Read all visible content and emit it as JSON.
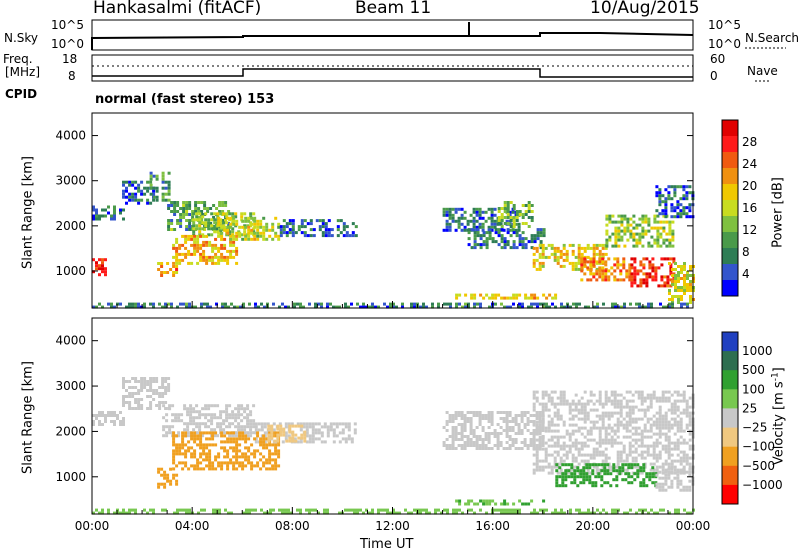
{
  "header": {
    "station": "Hankasalmi (fitACF)",
    "beam": "Beam 11",
    "date": "10/Aug/2015"
  },
  "noise_panel": {
    "left_label": "N.Sky",
    "left_ticks": [
      "10^5",
      "10^0"
    ],
    "right_label": "N.Search",
    "right_ticks": [
      "10^5",
      "10^0"
    ]
  },
  "freq_panel": {
    "left_label_1": "Freq.",
    "left_label_2": "[MHz]",
    "left_ticks": [
      "18",
      "8"
    ],
    "right_label": "Nave",
    "right_ticks": [
      "60",
      "0"
    ]
  },
  "cpid": {
    "label": "CPID",
    "value": "normal (fast stereo) 153"
  },
  "colors": {
    "power": [
      "#0000ff",
      "#3355cc",
      "#2e7d55",
      "#4a9a4a",
      "#7fc040",
      "#c8dc20",
      "#f0c800",
      "#f09010",
      "#f05a10",
      "#ff1a1a",
      "#e00000"
    ],
    "velocity": [
      "#ff0000",
      "#f06010",
      "#f0a020",
      "#f0c880",
      "#c8c8c8",
      "#78c850",
      "#30a030",
      "#2e6e50",
      "#2040c0"
    ],
    "ground_scatter": "#c8c8c8"
  },
  "chart_data": [
    {
      "type": "heatmap",
      "quantity": "Power",
      "ylabel": "Slant Range [km]",
      "xlabel": "",
      "yticks": [
        "4000",
        "3000",
        "2000",
        "1000"
      ],
      "ylim": [
        180,
        4500
      ],
      "xlim": [
        0,
        24
      ],
      "colorbar_label": "Power [dB]",
      "colorbar_ticks": [
        "28",
        "24",
        "20",
        "16",
        "12",
        "8",
        "4"
      ],
      "colorbar_range": [
        0,
        32
      ],
      "regions": [
        {
          "t0": 0.0,
          "t1": 0.5,
          "r0": 900,
          "r1": 1350,
          "v": 27
        },
        {
          "t0": 0.0,
          "t1": 1.2,
          "r0": 2150,
          "r1": 2450,
          "v": 6
        },
        {
          "t0": 1.2,
          "t1": 2.4,
          "r0": 2500,
          "r1": 3000,
          "v": 5
        },
        {
          "t0": 2.3,
          "t1": 3.1,
          "r0": 2600,
          "r1": 3200,
          "v": 10
        },
        {
          "t0": 3.0,
          "t1": 5.5,
          "r0": 1900,
          "r1": 2550,
          "v": 10
        },
        {
          "t0": 4.0,
          "t1": 6.5,
          "r0": 1800,
          "r1": 2300,
          "v": 14
        },
        {
          "t0": 2.6,
          "t1": 3.4,
          "r0": 900,
          "r1": 1200,
          "v": 22
        },
        {
          "t0": 3.2,
          "t1": 5.8,
          "r0": 1200,
          "r1": 1800,
          "v": 20
        },
        {
          "t0": 5.0,
          "t1": 7.5,
          "r0": 1700,
          "r1": 2200,
          "v": 16
        },
        {
          "t0": 7.5,
          "t1": 10.5,
          "r0": 1800,
          "r1": 2150,
          "v": 6
        },
        {
          "t0": 14.0,
          "t1": 17.0,
          "r0": 1900,
          "r1": 2400,
          "v": 6
        },
        {
          "t0": 16.2,
          "t1": 17.6,
          "r0": 2000,
          "r1": 2550,
          "v": 12
        },
        {
          "t0": 15.0,
          "t1": 18.0,
          "r0": 1500,
          "r1": 1950,
          "v": 6
        },
        {
          "t0": 17.6,
          "t1": 20.5,
          "r0": 1050,
          "r1": 1600,
          "v": 18
        },
        {
          "t0": 20.5,
          "t1": 23.2,
          "r0": 1550,
          "r1": 2250,
          "v": 14
        },
        {
          "t0": 22.5,
          "t1": 24.0,
          "r0": 2200,
          "r1": 2900,
          "v": 5
        },
        {
          "t0": 19.5,
          "t1": 21.5,
          "r0": 800,
          "r1": 1300,
          "v": 22
        },
        {
          "t0": 21.5,
          "t1": 23.2,
          "r0": 700,
          "r1": 1300,
          "v": 28
        },
        {
          "t0": 23.0,
          "t1": 24.0,
          "r0": 300,
          "r1": 1200,
          "v": 16
        },
        {
          "t0": 14.5,
          "t1": 18.5,
          "r0": 400,
          "r1": 500,
          "v": 20
        },
        {
          "t0": 0.0,
          "t1": 24.0,
          "r0": 180,
          "r1": 300,
          "v": 7
        }
      ]
    },
    {
      "type": "heatmap",
      "quantity": "Velocity",
      "ylabel": "Slant Range [km]",
      "xlabel": "Time UT",
      "xticks": [
        "00:00",
        "04:00",
        "08:00",
        "12:00",
        "16:00",
        "20:00",
        "00:00"
      ],
      "yticks": [
        "4000",
        "3000",
        "2000",
        "1000"
      ],
      "ylim": [
        180,
        4500
      ],
      "xlim": [
        0,
        24
      ],
      "colorbar_label": "Velocity [m s",
      "colorbar_unit_exp": "-1",
      "colorbar_unit_close": "]",
      "colorbar_ticks": [
        "1000",
        "500",
        "100",
        "25",
        "−25",
        "−100",
        "−500",
        "−1000"
      ],
      "regions": [
        {
          "t0": 0.0,
          "t1": 1.2,
          "r0": 2150,
          "r1": 2450,
          "v": 0
        },
        {
          "t0": 1.2,
          "t1": 3.0,
          "r0": 2500,
          "r1": 3200,
          "v": 0
        },
        {
          "t0": 2.8,
          "t1": 6.5,
          "r0": 1900,
          "r1": 2600,
          "v": 0
        },
        {
          "t0": 6.5,
          "t1": 10.5,
          "r0": 1800,
          "r1": 2200,
          "v": 0
        },
        {
          "t0": 2.6,
          "t1": 3.4,
          "r0": 800,
          "r1": 1200,
          "v": -350
        },
        {
          "t0": 3.2,
          "t1": 7.5,
          "r0": 1200,
          "r1": 2000,
          "v": -250
        },
        {
          "t0": 7.0,
          "t1": 8.5,
          "r0": 1800,
          "r1": 2150,
          "v": -60
        },
        {
          "t0": 14.0,
          "t1": 18.0,
          "r0": 1600,
          "r1": 2450,
          "v": 0
        },
        {
          "t0": 17.6,
          "t1": 24.0,
          "r0": 1100,
          "r1": 2900,
          "v": 0
        },
        {
          "t0": 18.5,
          "t1": 22.5,
          "r0": 800,
          "r1": 1300,
          "v": 300
        },
        {
          "t0": 22.5,
          "t1": 24.0,
          "r0": 700,
          "r1": 1200,
          "v": 0
        },
        {
          "t0": 14.5,
          "t1": 18.0,
          "r0": 400,
          "r1": 500,
          "v": 80
        },
        {
          "t0": 0.0,
          "t1": 24.0,
          "r0": 180,
          "r1": 300,
          "v": 60
        }
      ]
    }
  ]
}
